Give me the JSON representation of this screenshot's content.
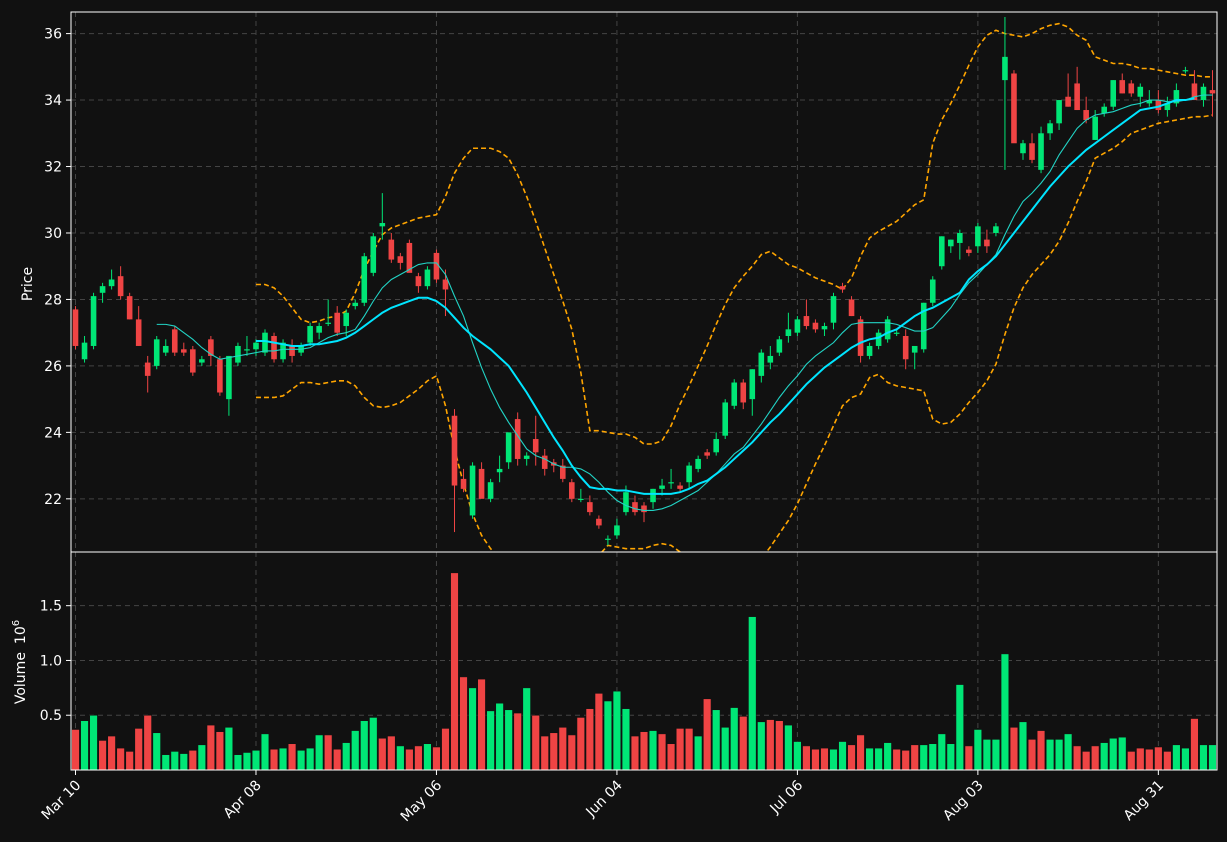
{
  "chart_data": {
    "type": "candlestick",
    "title": "",
    "colors": {
      "background": "#111111",
      "up": "#00e676",
      "down": "#ef4444",
      "ma_fast": "#22d3c5",
      "ma_slow": "#00e5ff",
      "bands": "#ffa500",
      "grid": "#444444",
      "axes": "#ffffff"
    },
    "grid": true,
    "price_panel": {
      "ylabel": "Price",
      "ylim": [
        20.4,
        36.65
      ],
      "yticks": [
        22,
        24,
        26,
        28,
        30,
        32,
        34,
        36
      ]
    },
    "volume_panel": {
      "ylabel": "Volume",
      "scale_label": "10",
      "scale_exp": "6",
      "ylim": [
        0,
        1.99
      ],
      "yticks": [
        0.5,
        1.0,
        1.5
      ],
      "ytick_labels": [
        "0.5",
        "1.0",
        "1.5"
      ]
    },
    "xtick_labels": [
      "Mar 10",
      "Apr 08",
      "May 06",
      "Jun 04",
      "Jul 06",
      "Aug 03",
      "Aug 31"
    ],
    "xtick_index": [
      0,
      20,
      40,
      60,
      80,
      100,
      120
    ],
    "bar_count": 127,
    "ohlc": [
      [
        27.7,
        27.8,
        26.5,
        26.6
      ],
      [
        26.2,
        26.9,
        26.1,
        26.7
      ],
      [
        26.6,
        28.2,
        26.5,
        28.1
      ],
      [
        28.2,
        28.5,
        27.9,
        28.4
      ],
      [
        28.4,
        28.9,
        28.3,
        28.6
      ],
      [
        28.7,
        29.0,
        28.0,
        28.1
      ],
      [
        28.1,
        28.2,
        27.4,
        27.4
      ],
      [
        27.4,
        27.8,
        26.6,
        26.6
      ],
      [
        26.1,
        26.3,
        25.2,
        25.7
      ],
      [
        26.0,
        26.9,
        25.9,
        26.8
      ],
      [
        26.4,
        26.8,
        26.3,
        26.6
      ],
      [
        27.1,
        27.2,
        26.3,
        26.4
      ],
      [
        26.5,
        26.7,
        26.3,
        26.4
      ],
      [
        26.5,
        26.6,
        25.7,
        25.8
      ],
      [
        26.1,
        26.3,
        26.0,
        26.2
      ],
      [
        26.8,
        26.9,
        26.0,
        26.3
      ],
      [
        26.2,
        26.3,
        25.1,
        25.2
      ],
      [
        25.0,
        26.3,
        24.5,
        26.3
      ],
      [
        26.1,
        26.7,
        26.0,
        26.6
      ],
      [
        26.5,
        26.9,
        26.3,
        26.5
      ],
      [
        26.5,
        26.8,
        26.3,
        26.7
      ],
      [
        26.4,
        27.1,
        26.3,
        27.0
      ],
      [
        26.9,
        27.0,
        26.1,
        26.2
      ],
      [
        26.2,
        26.8,
        26.1,
        26.7
      ],
      [
        26.6,
        26.8,
        26.1,
        26.3
      ],
      [
        26.4,
        26.7,
        26.3,
        26.6
      ],
      [
        26.7,
        27.3,
        26.6,
        27.2
      ],
      [
        27.0,
        27.3,
        26.8,
        27.2
      ],
      [
        27.3,
        28.0,
        27.2,
        27.3
      ],
      [
        27.6,
        27.8,
        26.9,
        27.0
      ],
      [
        27.2,
        27.7,
        26.9,
        27.6
      ],
      [
        27.8,
        28.0,
        27.7,
        27.9
      ],
      [
        27.9,
        29.4,
        27.8,
        29.3
      ],
      [
        28.8,
        30.0,
        28.7,
        29.9
      ],
      [
        30.2,
        31.2,
        29.8,
        30.3
      ],
      [
        29.8,
        30.0,
        29.1,
        29.2
      ],
      [
        29.3,
        29.4,
        28.9,
        29.1
      ],
      [
        29.7,
        29.8,
        28.9,
        28.8
      ],
      [
        28.7,
        28.8,
        28.2,
        28.4
      ],
      [
        28.4,
        29.0,
        28.3,
        28.9
      ],
      [
        29.4,
        29.5,
        28.5,
        28.6
      ],
      [
        28.6,
        28.9,
        27.5,
        28.3
      ],
      [
        24.5,
        24.7,
        21.0,
        22.4
      ],
      [
        22.6,
        22.9,
        22.2,
        22.3
      ],
      [
        21.5,
        23.1,
        21.4,
        23.0
      ],
      [
        22.9,
        23.1,
        22.1,
        22.0
      ],
      [
        22.0,
        22.6,
        21.9,
        22.5
      ],
      [
        22.8,
        23.3,
        22.5,
        22.9
      ],
      [
        23.1,
        24.0,
        22.9,
        24.0
      ],
      [
        24.4,
        24.6,
        23.0,
        23.2
      ],
      [
        23.2,
        23.4,
        23.0,
        23.3
      ],
      [
        23.8,
        24.5,
        23.0,
        23.4
      ],
      [
        23.3,
        23.5,
        22.7,
        22.9
      ],
      [
        23.1,
        23.2,
        22.8,
        23.0
      ],
      [
        23.0,
        23.2,
        22.5,
        22.6
      ],
      [
        22.5,
        22.6,
        21.9,
        22.0
      ],
      [
        22.0,
        22.3,
        21.9,
        22.0
      ],
      [
        21.9,
        22.1,
        21.5,
        21.6
      ],
      [
        21.4,
        21.5,
        21.1,
        21.2
      ],
      [
        20.8,
        20.9,
        20.6,
        20.8
      ],
      [
        20.9,
        21.4,
        20.8,
        21.2
      ],
      [
        21.6,
        22.4,
        21.5,
        22.2
      ],
      [
        21.9,
        22.1,
        21.5,
        21.6
      ],
      [
        21.8,
        21.9,
        21.3,
        21.6
      ],
      [
        21.9,
        22.3,
        21.7,
        22.3
      ],
      [
        22.3,
        22.6,
        22.1,
        22.4
      ],
      [
        22.5,
        22.9,
        22.3,
        22.5
      ],
      [
        22.4,
        22.5,
        22.2,
        22.3
      ],
      [
        22.5,
        23.1,
        22.3,
        23.0
      ],
      [
        22.9,
        23.3,
        22.8,
        23.2
      ],
      [
        23.4,
        23.5,
        23.2,
        23.3
      ],
      [
        23.4,
        24.0,
        23.3,
        23.8
      ],
      [
        23.9,
        25.0,
        23.8,
        24.9
      ],
      [
        24.8,
        25.6,
        24.7,
        25.5
      ],
      [
        25.5,
        25.6,
        24.7,
        24.9
      ],
      [
        25.0,
        25.9,
        24.5,
        25.9
      ],
      [
        25.7,
        26.5,
        25.5,
        26.4
      ],
      [
        26.1,
        26.6,
        25.9,
        26.3
      ],
      [
        26.4,
        26.9,
        26.3,
        26.8
      ],
      [
        26.9,
        27.6,
        26.7,
        27.1
      ],
      [
        27.0,
        27.5,
        26.9,
        27.4
      ],
      [
        27.5,
        28.0,
        27.1,
        27.2
      ],
      [
        27.3,
        27.4,
        27.0,
        27.1
      ],
      [
        27.1,
        27.3,
        26.9,
        27.2
      ],
      [
        27.3,
        28.2,
        27.1,
        28.1
      ],
      [
        28.4,
        28.5,
        28.2,
        28.3
      ],
      [
        28.0,
        28.1,
        27.5,
        27.5
      ],
      [
        27.4,
        27.5,
        26.1,
        26.3
      ],
      [
        26.3,
        26.7,
        26.2,
        26.6
      ],
      [
        26.6,
        27.1,
        26.5,
        27.0
      ],
      [
        26.8,
        27.5,
        26.7,
        27.4
      ],
      [
        27.0,
        27.1,
        26.9,
        27.0
      ],
      [
        26.9,
        27.1,
        25.9,
        26.2
      ],
      [
        26.4,
        26.5,
        25.9,
        26.6
      ],
      [
        26.5,
        27.9,
        26.4,
        27.9
      ],
      [
        27.9,
        28.7,
        27.8,
        28.6
      ],
      [
        29.0,
        29.9,
        28.9,
        29.9
      ],
      [
        29.6,
        29.8,
        29.4,
        29.8
      ],
      [
        29.7,
        30.1,
        29.2,
        30.0
      ],
      [
        29.5,
        29.6,
        29.3,
        29.4
      ],
      [
        29.6,
        30.3,
        29.4,
        30.2
      ],
      [
        29.8,
        30.1,
        29.4,
        29.6
      ],
      [
        30.0,
        30.3,
        29.9,
        30.2
      ],
      [
        34.6,
        36.5,
        31.9,
        35.3
      ],
      [
        34.8,
        34.9,
        32.8,
        32.7
      ],
      [
        32.4,
        32.8,
        32.2,
        32.7
      ],
      [
        32.7,
        33.0,
        32.1,
        32.2
      ],
      [
        31.9,
        33.2,
        31.8,
        33.0
      ],
      [
        33.0,
        33.4,
        32.8,
        33.3
      ],
      [
        33.3,
        34.0,
        33.1,
        34.0
      ],
      [
        34.1,
        34.8,
        33.8,
        33.8
      ],
      [
        34.5,
        35.0,
        33.7,
        33.7
      ],
      [
        33.7,
        34.1,
        33.3,
        33.4
      ],
      [
        32.8,
        33.7,
        32.8,
        33.5
      ],
      [
        33.6,
        33.9,
        33.5,
        33.8
      ],
      [
        33.8,
        34.6,
        33.7,
        34.6
      ],
      [
        34.6,
        34.8,
        34.2,
        34.2
      ],
      [
        34.5,
        34.6,
        34.1,
        34.2
      ],
      [
        34.1,
        34.5,
        33.8,
        34.4
      ],
      [
        33.9,
        34.3,
        33.8,
        34.0
      ],
      [
        34.0,
        34.3,
        33.6,
        33.7
      ],
      [
        33.7,
        34.1,
        33.5,
        33.9
      ],
      [
        33.9,
        34.5,
        33.8,
        34.3
      ],
      [
        34.9,
        35.0,
        34.8,
        34.9
      ],
      [
        34.5,
        34.9,
        34.1,
        34.0
      ],
      [
        34.0,
        34.5,
        33.8,
        34.4
      ],
      [
        34.3,
        34.9,
        33.5,
        34.2
      ]
    ],
    "volume": [
      0.37,
      0.45,
      0.5,
      0.27,
      0.31,
      0.2,
      0.17,
      0.38,
      0.5,
      0.34,
      0.14,
      0.17,
      0.15,
      0.18,
      0.23,
      0.41,
      0.35,
      0.39,
      0.14,
      0.16,
      0.18,
      0.33,
      0.19,
      0.2,
      0.24,
      0.18,
      0.2,
      0.32,
      0.32,
      0.19,
      0.25,
      0.36,
      0.45,
      0.48,
      0.29,
      0.31,
      0.22,
      0.19,
      0.22,
      0.24,
      0.21,
      0.38,
      1.8,
      0.85,
      0.75,
      0.83,
      0.54,
      0.61,
      0.55,
      0.52,
      0.75,
      0.5,
      0.31,
      0.34,
      0.39,
      0.32,
      0.48,
      0.56,
      0.7,
      0.63,
      0.72,
      0.56,
      0.31,
      0.35,
      0.36,
      0.33,
      0.24,
      0.38,
      0.38,
      0.31,
      0.65,
      0.55,
      0.39,
      0.57,
      0.49,
      1.4,
      0.44,
      0.46,
      0.45,
      0.41,
      0.26,
      0.22,
      0.19,
      0.2,
      0.19,
      0.26,
      0.23,
      0.32,
      0.2,
      0.2,
      0.25,
      0.19,
      0.18,
      0.23,
      0.23,
      0.24,
      0.33,
      0.24,
      0.78,
      0.22,
      0.37,
      0.28,
      0.28,
      1.06,
      0.39,
      0.44,
      0.28,
      0.36,
      0.28,
      0.28,
      0.33,
      0.22,
      0.17,
      0.22,
      0.25,
      0.29,
      0.3,
      0.17,
      0.2,
      0.19,
      0.21,
      0.17,
      0.23,
      0.2,
      0.47,
      0.23,
      0.23
    ],
    "volume_down": [
      1,
      0,
      0,
      1,
      1,
      1,
      1,
      1,
      1,
      0,
      0,
      0,
      0,
      1,
      0,
      1,
      1,
      0,
      0,
      0,
      0,
      0,
      1,
      0,
      1,
      0,
      0,
      0,
      1,
      1,
      0,
      0,
      0,
      0,
      1,
      1,
      0,
      1,
      1,
      0,
      1,
      1,
      1,
      1,
      0,
      1,
      0,
      0,
      0,
      1,
      0,
      1,
      1,
      1,
      1,
      1,
      1,
      1,
      1,
      0,
      0,
      0,
      1,
      1,
      0,
      1,
      1,
      1,
      1,
      0,
      1,
      0,
      0,
      0,
      1,
      0,
      0,
      1,
      1,
      0,
      0,
      1,
      1,
      1,
      0,
      0,
      1,
      1,
      0,
      0,
      0,
      1,
      1,
      1,
      0,
      0,
      0,
      0,
      0,
      1,
      0,
      0,
      0,
      0,
      1,
      0,
      1,
      1,
      0,
      0,
      0,
      1,
      1,
      1,
      0,
      0,
      0,
      1,
      1,
      1,
      1,
      1,
      0,
      0,
      1,
      0,
      0
    ],
    "ma_fast": [
      null,
      null,
      null,
      null,
      null,
      null,
      null,
      null,
      null,
      27.25,
      27.25,
      27.2,
      27.0,
      26.8,
      26.55,
      26.35,
      26.2,
      26.25,
      26.3,
      26.35,
      26.4,
      26.45,
      26.45,
      26.5,
      26.5,
      26.5,
      26.55,
      26.7,
      26.85,
      26.95,
      27.0,
      27.1,
      27.5,
      27.95,
      28.35,
      28.6,
      28.75,
      28.9,
      29.05,
      29.1,
      29.1,
      28.75,
      28.1,
      27.5,
      26.7,
      25.95,
      25.3,
      24.75,
      24.3,
      23.9,
      23.5,
      23.3,
      23.2,
      23.05,
      22.95,
      22.95,
      22.9,
      22.75,
      22.5,
      22.2,
      21.95,
      21.8,
      21.7,
      21.65,
      21.65,
      21.7,
      21.8,
      21.95,
      22.1,
      22.25,
      22.5,
      22.75,
      23.05,
      23.35,
      23.55,
      23.9,
      24.25,
      24.65,
      25.05,
      25.4,
      25.7,
      26.05,
      26.3,
      26.5,
      26.7,
      27.0,
      27.25,
      27.3,
      27.3,
      27.3,
      27.3,
      27.25,
      27.15,
      27.05,
      27.05,
      27.15,
      27.45,
      27.75,
      28.15,
      28.5,
      28.75,
      29.05,
      29.35,
      29.95,
      30.5,
      30.95,
      31.2,
      31.5,
      31.85,
      32.35,
      32.75,
      33.15,
      33.4,
      33.55,
      33.6,
      33.65,
      33.75,
      33.85,
      33.9,
      34.0,
      34.0,
      33.95,
      33.95,
      34.0,
      34.1,
      34.15,
      34.15
    ],
    "ma_slow": [
      null,
      null,
      null,
      null,
      null,
      null,
      null,
      null,
      null,
      null,
      null,
      null,
      null,
      null,
      null,
      null,
      null,
      null,
      null,
      null,
      26.75,
      26.75,
      26.7,
      26.65,
      26.6,
      26.6,
      26.65,
      26.65,
      26.7,
      26.75,
      26.85,
      27.0,
      27.2,
      27.4,
      27.6,
      27.75,
      27.85,
      27.95,
      28.05,
      28.05,
      27.95,
      27.75,
      27.45,
      27.15,
      26.9,
      26.7,
      26.5,
      26.25,
      26.0,
      25.6,
      25.2,
      24.75,
      24.3,
      23.85,
      23.45,
      23.0,
      22.65,
      22.35,
      22.3,
      22.3,
      22.25,
      22.25,
      22.2,
      22.15,
      22.15,
      22.15,
      22.15,
      22.2,
      22.3,
      22.45,
      22.55,
      22.75,
      22.95,
      23.2,
      23.45,
      23.7,
      24.0,
      24.3,
      24.55,
      24.85,
      25.15,
      25.45,
      25.7,
      25.95,
      26.15,
      26.35,
      26.55,
      26.7,
      26.8,
      26.85,
      27.0,
      27.1,
      27.3,
      27.5,
      27.65,
      27.75,
      27.9,
      28.05,
      28.2,
      28.6,
      28.85,
      29.05,
      29.3,
      29.65,
      30.0,
      30.35,
      30.7,
      31.05,
      31.4,
      31.7,
      32.0,
      32.25,
      32.5,
      32.7,
      32.9,
      33.1,
      33.3,
      33.5,
      33.7,
      33.75,
      33.8,
      33.9,
      34.0,
      34.0,
      34.05
    ],
    "bb_upper": [
      null,
      null,
      null,
      null,
      null,
      null,
      null,
      null,
      null,
      null,
      null,
      null,
      null,
      null,
      null,
      null,
      null,
      null,
      null,
      null,
      28.45,
      28.45,
      28.35,
      28.1,
      27.75,
      27.4,
      27.3,
      27.35,
      27.45,
      27.5,
      27.65,
      28.2,
      28.9,
      29.45,
      29.95,
      30.15,
      30.25,
      30.35,
      30.45,
      30.5,
      30.55,
      31.1,
      31.8,
      32.25,
      32.55,
      32.55,
      32.55,
      32.45,
      32.25,
      31.75,
      31.1,
      30.35,
      29.55,
      28.75,
      27.95,
      27.1,
      25.8,
      24.05,
      24.05,
      24.0,
      23.95,
      23.95,
      23.85,
      23.65,
      23.65,
      23.75,
      24.2,
      24.85,
      25.4,
      26.0,
      26.6,
      27.25,
      27.85,
      28.35,
      28.7,
      29.0,
      29.35,
      29.45,
      29.25,
      29.05,
      28.95,
      28.8,
      28.65,
      28.55,
      28.45,
      28.3,
      28.65,
      29.3,
      29.85,
      30.05,
      30.2,
      30.35,
      30.6,
      30.85,
      31.0,
      32.7,
      33.4,
      33.9,
      34.45,
      35.05,
      35.6,
      35.95,
      36.1,
      36.0,
      35.95,
      35.9,
      36.0,
      36.15,
      36.25,
      36.3,
      36.2,
      35.95,
      35.8,
      35.3,
      35.2,
      35.1,
      35.1,
      35.05,
      34.95,
      34.95,
      34.9,
      34.85,
      34.8,
      34.75,
      34.75,
      34.7,
      34.7
    ],
    "bb_lower": [
      null,
      null,
      null,
      null,
      null,
      null,
      null,
      null,
      null,
      null,
      null,
      null,
      null,
      null,
      null,
      null,
      null,
      null,
      null,
      null,
      25.05,
      25.05,
      25.05,
      25.1,
      25.3,
      25.5,
      25.5,
      25.45,
      25.5,
      25.55,
      25.55,
      25.4,
      25.05,
      24.8,
      24.75,
      24.8,
      24.9,
      25.1,
      25.3,
      25.55,
      25.7,
      24.8,
      23.5,
      22.45,
      21.55,
      20.9,
      20.5,
      20.2,
      19.9,
      19.7,
      19.55,
      19.4,
      19.3,
      19.25,
      19.3,
      19.45,
      19.65,
      19.95,
      20.3,
      20.6,
      20.55,
      20.5,
      20.5,
      20.5,
      20.6,
      20.65,
      20.6,
      20.4,
      20.1,
      19.85,
      19.7,
      19.65,
      19.6,
      19.65,
      19.75,
      19.95,
      20.2,
      20.55,
      20.95,
      21.35,
      21.85,
      22.45,
      23.05,
      23.6,
      24.2,
      24.8,
      25.05,
      25.15,
      25.65,
      25.75,
      25.5,
      25.4,
      25.35,
      25.3,
      25.25,
      24.4,
      24.25,
      24.3,
      24.55,
      24.9,
      25.2,
      25.55,
      26.05,
      26.95,
      27.75,
      28.35,
      28.75,
      29.05,
      29.35,
      29.75,
      30.3,
      30.95,
      31.55,
      32.25,
      32.4,
      32.55,
      32.75,
      33.0,
      33.1,
      33.2,
      33.3,
      33.35,
      33.4,
      33.45,
      33.5,
      33.5,
      33.55
    ]
  }
}
